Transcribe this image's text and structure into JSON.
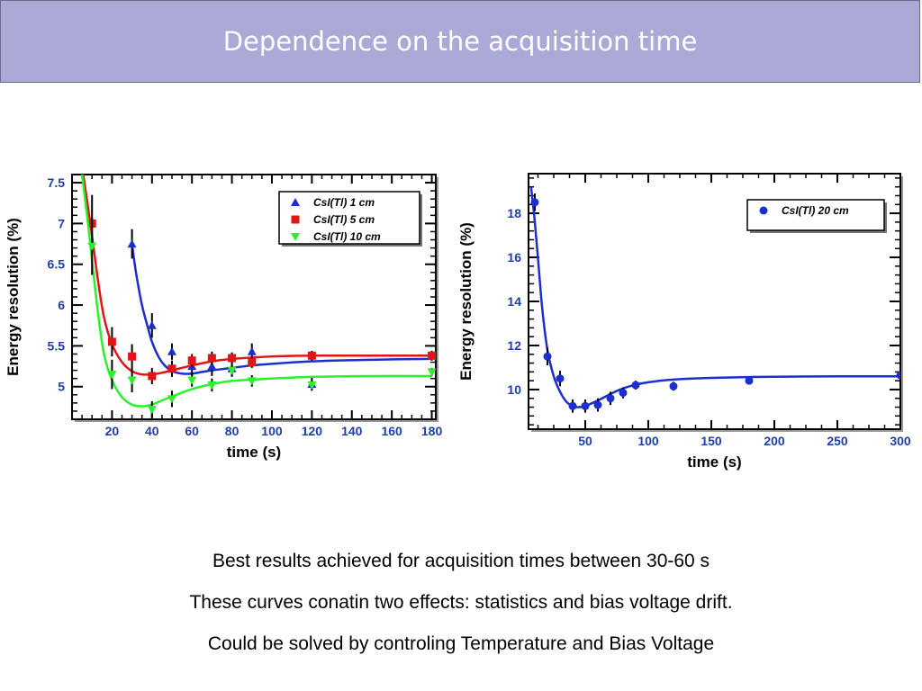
{
  "slide": {
    "title": "Dependence on the acquisition time",
    "captions": [
      "Best results achieved for acquisition times between 30-60 s",
      "These curves conatin two effects:  statistics and bias voltage drift.",
      "Could be solved by controling Temperature and Bias Voltage"
    ]
  },
  "colors": {
    "blue": "#1c2fcc",
    "red": "#e01616",
    "green": "#2af22a",
    "title_bg": "#abaad7"
  },
  "chart_data": [
    {
      "type": "scatter",
      "title": "",
      "xlabel": "time (s)",
      "ylabel": "Energy resolution (%)",
      "xlim": [
        0,
        182
      ],
      "ylim": [
        4.6,
        7.6
      ],
      "xticks": [
        20,
        40,
        60,
        80,
        100,
        120,
        140,
        160,
        180
      ],
      "yticks": [
        5,
        5.5,
        6,
        6.5,
        7,
        7.5
      ],
      "xtick_labels": [
        "20",
        "40",
        "60",
        "80",
        "100",
        "120",
        "140",
        "160",
        "180"
      ],
      "ytick_labels": [
        "5",
        "5.5",
        "6",
        "6.5",
        "7",
        "7.5"
      ],
      "legend_position": "top-right",
      "series": [
        {
          "name": "CsI(Tl) 1 cm",
          "marker": "triangle-up",
          "color": "#1c2fcc",
          "x": [
            30,
            40,
            50,
            60,
            70,
            80,
            90,
            120
          ],
          "y": [
            6.75,
            5.75,
            5.43,
            5.25,
            5.25,
            5.22,
            5.43,
            5.03
          ],
          "err": [
            0.18,
            0.15,
            0.1,
            0.12,
            0.12,
            0.1,
            0.1,
            0.08
          ],
          "fit_x": [
            30,
            32,
            35,
            38,
            40,
            43,
            46,
            50,
            55,
            60,
            65,
            70,
            80,
            90,
            100,
            120,
            150,
            180
          ],
          "fit_y": [
            6.75,
            6.4,
            6.0,
            5.72,
            5.55,
            5.38,
            5.27,
            5.19,
            5.16,
            5.16,
            5.18,
            5.2,
            5.23,
            5.26,
            5.28,
            5.31,
            5.33,
            5.34
          ]
        },
        {
          "name": "CsI(Tl) 5 cm",
          "marker": "square",
          "color": "#e01616",
          "x": [
            10,
            20,
            30,
            40,
            50,
            60,
            70,
            80,
            90,
            120,
            180
          ],
          "y": [
            7.0,
            5.55,
            5.37,
            5.13,
            5.22,
            5.32,
            5.35,
            5.35,
            5.3,
            5.38,
            5.38
          ],
          "err": [
            0.35,
            0.18,
            0.15,
            0.1,
            0.1,
            0.08,
            0.08,
            0.07,
            0.07,
            0.06,
            0.06
          ],
          "fit_x": [
            5,
            8,
            10,
            13,
            16,
            20,
            25,
            30,
            35,
            40,
            45,
            50,
            60,
            70,
            80,
            100,
            120,
            150,
            180
          ],
          "fit_y": [
            7.7,
            7.2,
            6.85,
            6.3,
            5.85,
            5.52,
            5.3,
            5.19,
            5.15,
            5.15,
            5.17,
            5.2,
            5.26,
            5.31,
            5.34,
            5.37,
            5.38,
            5.38,
            5.38
          ]
        },
        {
          "name": "CsI(Tl) 10 cm",
          "marker": "triangle-down",
          "color": "#2af22a",
          "x": [
            10,
            20,
            30,
            40,
            50,
            60,
            70,
            80,
            90,
            120,
            180
          ],
          "y": [
            6.72,
            5.15,
            5.08,
            4.72,
            4.85,
            5.08,
            5.02,
            5.2,
            5.07,
            5.02,
            5.18
          ],
          "err": [
            0.35,
            0.18,
            0.15,
            0.1,
            0.1,
            0.08,
            0.08,
            0.07,
            0.07,
            0.06,
            0.05
          ],
          "fit_x": [
            5,
            8,
            10,
            13,
            16,
            20,
            25,
            30,
            35,
            40,
            45,
            50,
            60,
            70,
            80,
            100,
            120,
            150,
            180
          ],
          "fit_y": [
            7.6,
            7.0,
            6.55,
            5.9,
            5.4,
            5.08,
            4.87,
            4.78,
            4.76,
            4.78,
            4.83,
            4.88,
            4.97,
            5.03,
            5.07,
            5.1,
            5.12,
            5.13,
            5.13
          ]
        }
      ]
    },
    {
      "type": "scatter",
      "title": "",
      "xlabel": "time (s)",
      "ylabel": "Energy resolution (%)",
      "xlim": [
        5,
        300
      ],
      "ylim": [
        8.2,
        19.8
      ],
      "xticks": [
        50,
        100,
        150,
        200,
        250,
        300
      ],
      "yticks": [
        10,
        12,
        14,
        16,
        18
      ],
      "xtick_labels": [
        "50",
        "100",
        "150",
        "200",
        "250",
        "300"
      ],
      "ytick_labels": [
        "10",
        "12",
        "14",
        "16",
        "18"
      ],
      "legend_position": "top-right",
      "series": [
        {
          "name": "CsI(Tl) 20 cm",
          "marker": "circle",
          "color": "#1c2fcc",
          "x": [
            10,
            20,
            30,
            40,
            50,
            60,
            70,
            80,
            90,
            120,
            180,
            300
          ],
          "y": [
            18.5,
            11.5,
            10.5,
            9.25,
            9.25,
            9.3,
            9.6,
            9.85,
            10.2,
            10.15,
            10.4,
            10.65
          ],
          "err": [
            0.4,
            0.4,
            0.35,
            0.3,
            0.3,
            0.3,
            0.3,
            0.25,
            0.2,
            0.2,
            0.15,
            0.15
          ],
          "fit_x": [
            7,
            10,
            13,
            16,
            20,
            25,
            30,
            35,
            40,
            45,
            50,
            60,
            70,
            80,
            90,
            100,
            120,
            150,
            200,
            250,
            300
          ],
          "fit_y": [
            19.2,
            17.6,
            15.6,
            13.6,
            11.8,
            10.6,
            9.9,
            9.45,
            9.25,
            9.2,
            9.25,
            9.5,
            9.8,
            10.05,
            10.22,
            10.33,
            10.45,
            10.53,
            10.58,
            10.6,
            10.6
          ]
        }
      ]
    }
  ]
}
